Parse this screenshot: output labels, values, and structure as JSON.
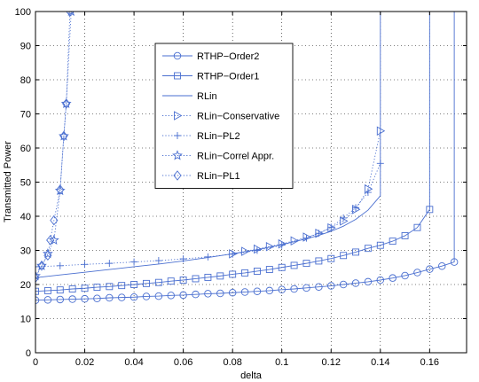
{
  "chart_data": {
    "type": "line",
    "title": "",
    "xlabel": "delta",
    "ylabel": "Transmitted Power",
    "xlim": [
      0,
      0.175
    ],
    "ylim": [
      0,
      100
    ],
    "xticks": [
      0,
      0.02,
      0.04,
      0.06,
      0.08,
      0.1,
      0.12,
      0.14,
      0.16
    ],
    "xtick_labels": [
      "0",
      "0.02",
      "0.04",
      "0.06",
      "0.08",
      "0.1",
      "0.12",
      "0.14",
      "0.16"
    ],
    "yticks": [
      0,
      10,
      20,
      30,
      40,
      50,
      60,
      70,
      80,
      90,
      100
    ],
    "ytick_labels": [
      "0",
      "10",
      "20",
      "30",
      "40",
      "50",
      "60",
      "70",
      "80",
      "90",
      "100"
    ],
    "grid": true,
    "legend_position": "upper-center",
    "line_color": "#4a6fd0",
    "series": [
      {
        "name": "RTHP−Order2",
        "line": "solid",
        "marker": "circle",
        "x": [
          0,
          0.005,
          0.01,
          0.015,
          0.02,
          0.025,
          0.03,
          0.035,
          0.04,
          0.045,
          0.05,
          0.055,
          0.06,
          0.065,
          0.07,
          0.075,
          0.08,
          0.085,
          0.09,
          0.095,
          0.1,
          0.105,
          0.11,
          0.115,
          0.12,
          0.125,
          0.13,
          0.135,
          0.14,
          0.145,
          0.15,
          0.155,
          0.16,
          0.165,
          0.17,
          0.17
        ],
        "y": [
          15.4,
          15.5,
          15.6,
          15.7,
          15.8,
          15.9,
          16.1,
          16.2,
          16.3,
          16.5,
          16.6,
          16.8,
          16.9,
          17.1,
          17.3,
          17.4,
          17.6,
          17.8,
          18.0,
          18.2,
          18.5,
          18.7,
          19.0,
          19.3,
          19.6,
          20.0,
          20.4,
          20.8,
          21.3,
          21.9,
          22.6,
          23.5,
          24.5,
          25.4,
          26.6,
          100
        ],
        "markers_x": [
          0,
          0.005,
          0.01,
          0.015,
          0.02,
          0.025,
          0.03,
          0.035,
          0.04,
          0.045,
          0.05,
          0.055,
          0.06,
          0.065,
          0.07,
          0.075,
          0.08,
          0.085,
          0.09,
          0.095,
          0.1,
          0.105,
          0.11,
          0.115,
          0.12,
          0.125,
          0.13,
          0.135,
          0.14,
          0.145,
          0.15,
          0.155,
          0.16,
          0.165,
          0.17
        ],
        "markers_y": [
          15.4,
          15.5,
          15.6,
          15.7,
          15.8,
          15.9,
          16.1,
          16.2,
          16.3,
          16.5,
          16.6,
          16.8,
          16.9,
          17.1,
          17.3,
          17.4,
          17.6,
          17.8,
          18.0,
          18.2,
          18.5,
          18.7,
          19.0,
          19.3,
          19.6,
          20.0,
          20.4,
          20.8,
          21.3,
          21.9,
          22.6,
          23.5,
          24.5,
          25.4,
          26.6
        ]
      },
      {
        "name": "RTHP−Order1",
        "line": "solid",
        "marker": "square",
        "x": [
          0,
          0.005,
          0.01,
          0.015,
          0.02,
          0.025,
          0.03,
          0.035,
          0.04,
          0.045,
          0.05,
          0.055,
          0.06,
          0.065,
          0.07,
          0.075,
          0.08,
          0.085,
          0.09,
          0.095,
          0.1,
          0.105,
          0.11,
          0.115,
          0.12,
          0.125,
          0.13,
          0.135,
          0.14,
          0.145,
          0.15,
          0.155,
          0.16,
          0.16
        ],
        "y": [
          18.0,
          18.2,
          18.4,
          18.7,
          18.9,
          19.2,
          19.4,
          19.7,
          20.0,
          20.3,
          20.6,
          21.0,
          21.3,
          21.7,
          22.1,
          22.5,
          23.0,
          23.4,
          23.9,
          24.4,
          25.0,
          25.6,
          26.2,
          26.9,
          27.6,
          28.5,
          29.5,
          30.6,
          31.5,
          32.7,
          34.3,
          36.7,
          42.0,
          100
        ],
        "markers_x": [
          0,
          0.005,
          0.01,
          0.015,
          0.02,
          0.025,
          0.03,
          0.035,
          0.04,
          0.045,
          0.05,
          0.055,
          0.06,
          0.065,
          0.07,
          0.075,
          0.08,
          0.085,
          0.09,
          0.095,
          0.1,
          0.105,
          0.11,
          0.115,
          0.12,
          0.125,
          0.13,
          0.135,
          0.14,
          0.145,
          0.15,
          0.155,
          0.16
        ],
        "markers_y": [
          18.0,
          18.2,
          18.4,
          18.7,
          18.9,
          19.2,
          19.4,
          19.7,
          20.0,
          20.3,
          20.6,
          21.0,
          21.3,
          21.7,
          22.1,
          22.5,
          23.0,
          23.4,
          23.9,
          24.4,
          25.0,
          25.6,
          26.2,
          26.9,
          27.6,
          28.5,
          29.5,
          30.6,
          31.5,
          32.7,
          34.3,
          36.7,
          42.0
        ]
      },
      {
        "name": "RLin",
        "line": "solid",
        "marker": "none",
        "x": [
          0,
          0.01,
          0.02,
          0.03,
          0.04,
          0.05,
          0.06,
          0.07,
          0.08,
          0.09,
          0.1,
          0.11,
          0.115,
          0.12,
          0.125,
          0.13,
          0.135,
          0.14,
          0.14
        ],
        "y": [
          22.0,
          22.8,
          23.6,
          24.4,
          25.2,
          26.0,
          26.9,
          27.9,
          29.0,
          30.2,
          31.7,
          33.4,
          34.4,
          35.6,
          37.1,
          39.1,
          41.8,
          46.0,
          100
        ]
      },
      {
        "name": "RLin−Conservative",
        "line": "dotted",
        "marker": "triangle-right",
        "x": [
          0.08,
          0.085,
          0.09,
          0.095,
          0.1,
          0.105,
          0.11,
          0.115,
          0.12,
          0.125,
          0.13,
          0.135,
          0.14
        ],
        "y": [
          29.0,
          29.7,
          30.4,
          31.1,
          31.9,
          32.8,
          33.9,
          35.0,
          36.6,
          38.6,
          42.0,
          48.0,
          65.0
        ]
      },
      {
        "name": "RLin−PL2",
        "line": "dotted",
        "marker": "plus",
        "x": [
          0,
          0.01,
          0.02,
          0.03,
          0.04,
          0.05,
          0.06,
          0.07,
          0.08,
          0.09,
          0.1,
          0.11,
          0.115,
          0.12,
          0.125,
          0.13,
          0.135,
          0.14
        ],
        "y": [
          25.2,
          25.5,
          25.9,
          26.2,
          26.6,
          27.0,
          27.5,
          28.1,
          28.9,
          30.0,
          31.5,
          33.6,
          35.0,
          36.8,
          39.5,
          42.5,
          47.0,
          55.5
        ]
      },
      {
        "name": "RLin−Correl Appr.",
        "line": "dotted",
        "marker": "star",
        "x": [
          0,
          0.0025,
          0.005,
          0.0075,
          0.01,
          0.0115,
          0.0125,
          0.0145
        ],
        "y": [
          22.5,
          25.5,
          29.0,
          33.0,
          47.5,
          63.5,
          73.0,
          100
        ]
      },
      {
        "name": "RLin−PL1",
        "line": "dotted",
        "marker": "diamond",
        "x": [
          0,
          0.0025,
          0.005,
          0.006,
          0.0075,
          0.01,
          0.0115,
          0.0125,
          0.014
        ],
        "y": [
          22.0,
          25.5,
          28.5,
          33.0,
          38.8,
          47.8,
          63.5,
          73.0,
          100
        ]
      }
    ]
  }
}
